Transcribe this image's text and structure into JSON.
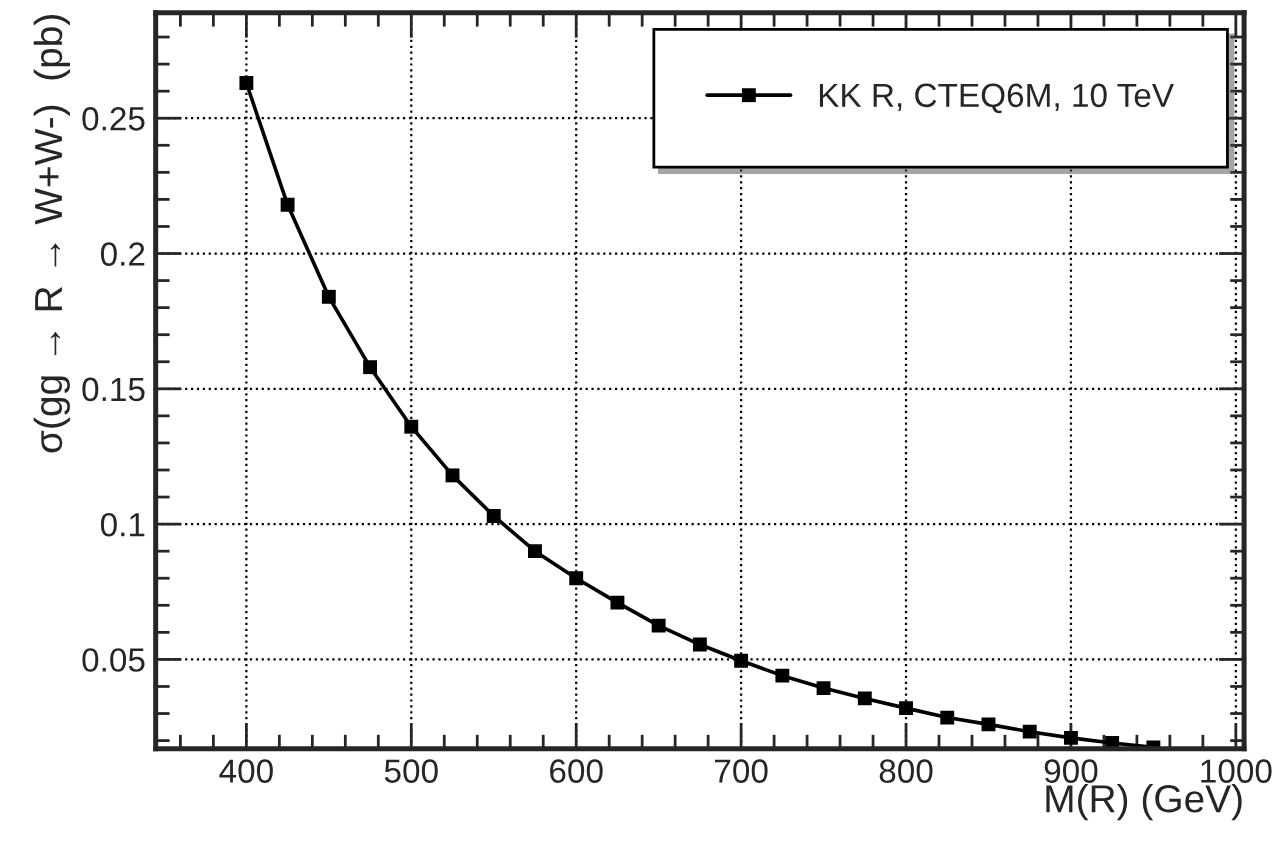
{
  "chart_data": {
    "type": "line",
    "xlabel": "M(R) (GeV)",
    "ylabel": "σ(gg → R → W+W-)  (pb)",
    "x": [
      400,
      425,
      450,
      475,
      500,
      525,
      550,
      575,
      600,
      625,
      650,
      675,
      700,
      725,
      750,
      775,
      800,
      825,
      850,
      875,
      900,
      925,
      950
    ],
    "series": [
      {
        "name": "KK R, CTEQ6M, 10 TeV",
        "color": "#000000",
        "values": [
          0.263,
          0.218,
          0.184,
          0.158,
          0.136,
          0.118,
          0.103,
          0.09,
          0.08,
          0.071,
          0.0625,
          0.0555,
          0.0495,
          0.044,
          0.0394,
          0.0356,
          0.032,
          0.0285,
          0.026,
          0.0233,
          0.021,
          0.0191,
          0.0175
        ]
      }
    ],
    "xlim": [
      345,
      1005
    ],
    "ylim": [
      0.017,
      0.289
    ],
    "xticks": [
      400,
      500,
      600,
      700,
      800,
      900,
      1000
    ],
    "yticks": [
      0.05,
      0.1,
      0.15,
      0.2,
      0.25
    ],
    "grid": true,
    "legend": "top right",
    "marker": "square",
    "line_style": "solid"
  }
}
